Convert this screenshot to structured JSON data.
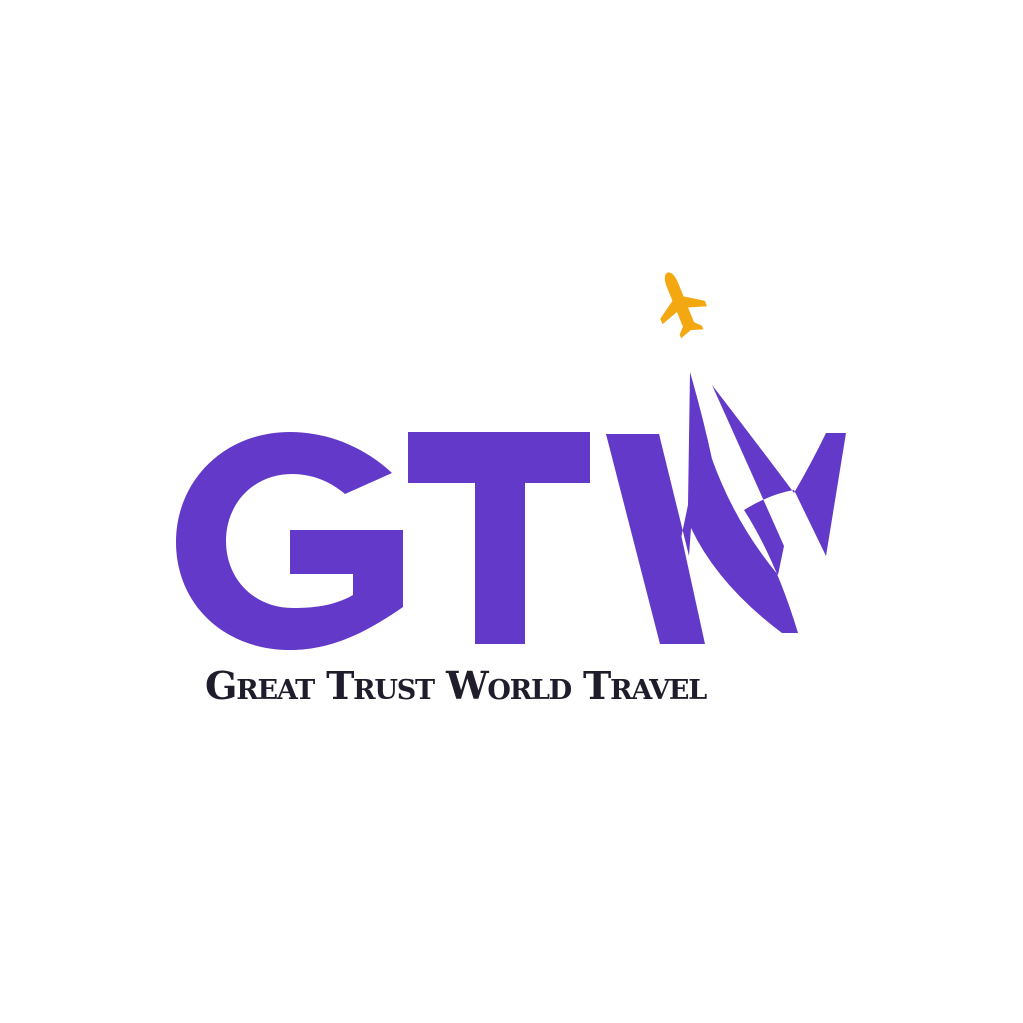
{
  "logo": {
    "monogram": "GTW",
    "tagline": "Great Trust World Travel",
    "icon": "airplane-icon",
    "colors": {
      "background": "#ffffff",
      "monogram": "#6339c9",
      "plane": "#f3a812",
      "tagline": "#1f1d2b"
    }
  }
}
